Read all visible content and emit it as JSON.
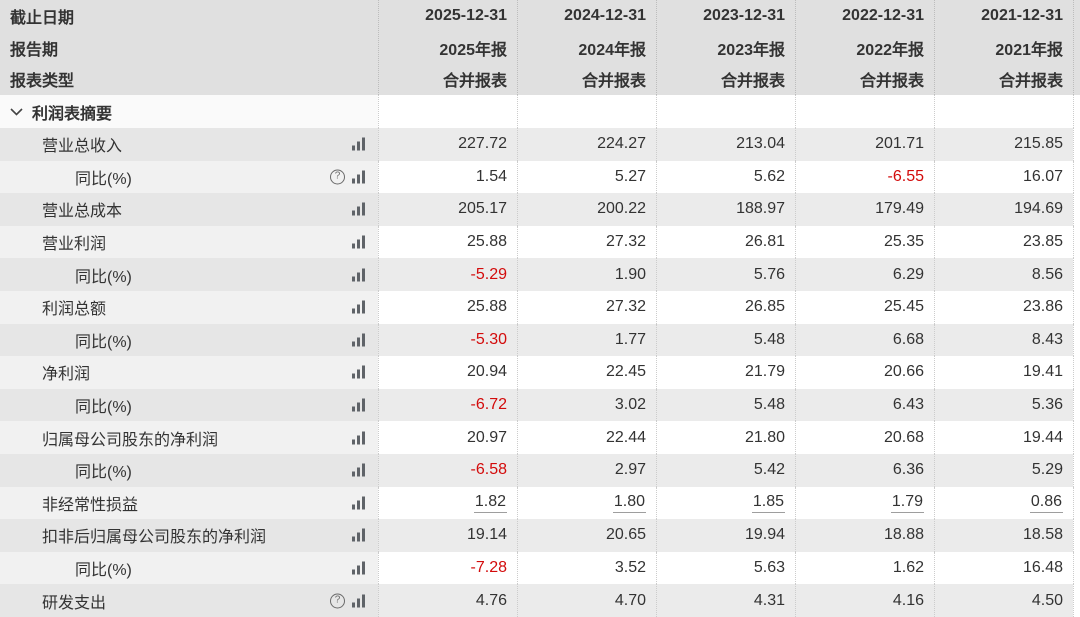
{
  "header": {
    "row_labels": [
      "截止日期",
      "报告期",
      "报表类型"
    ],
    "columns": [
      {
        "date": "2025-12-31",
        "period": "2025年报",
        "report_type": "合并报表"
      },
      {
        "date": "2024-12-31",
        "period": "2024年报",
        "report_type": "合并报表"
      },
      {
        "date": "2023-12-31",
        "period": "2023年报",
        "report_type": "合并报表"
      },
      {
        "date": "2022-12-31",
        "period": "2022年报",
        "report_type": "合并报表"
      },
      {
        "date": "2021-12-31",
        "period": "2021年报",
        "report_type": "合并报表"
      }
    ]
  },
  "section": {
    "title": "利润表摘要"
  },
  "rows": [
    {
      "label": "营业总收入",
      "indent": 1,
      "help": false,
      "chart": true,
      "link": false,
      "values": [
        "227.72",
        "224.27",
        "213.04",
        "201.71",
        "215.85"
      ]
    },
    {
      "label": "同比(%)",
      "indent": 2,
      "help": true,
      "chart": true,
      "link": false,
      "values": [
        "1.54",
        "5.27",
        "5.62",
        "-6.55",
        "16.07"
      ]
    },
    {
      "label": "营业总成本",
      "indent": 1,
      "help": false,
      "chart": true,
      "link": false,
      "values": [
        "205.17",
        "200.22",
        "188.97",
        "179.49",
        "194.69"
      ]
    },
    {
      "label": "营业利润",
      "indent": 1,
      "help": false,
      "chart": true,
      "link": false,
      "values": [
        "25.88",
        "27.32",
        "26.81",
        "25.35",
        "23.85"
      ]
    },
    {
      "label": "同比(%)",
      "indent": 2,
      "help": false,
      "chart": true,
      "link": false,
      "values": [
        "-5.29",
        "1.90",
        "5.76",
        "6.29",
        "8.56"
      ]
    },
    {
      "label": "利润总额",
      "indent": 1,
      "help": false,
      "chart": true,
      "link": false,
      "values": [
        "25.88",
        "27.32",
        "26.85",
        "25.45",
        "23.86"
      ]
    },
    {
      "label": "同比(%)",
      "indent": 2,
      "help": false,
      "chart": true,
      "link": false,
      "values": [
        "-5.30",
        "1.77",
        "5.48",
        "6.68",
        "8.43"
      ]
    },
    {
      "label": "净利润",
      "indent": 1,
      "help": false,
      "chart": true,
      "link": false,
      "values": [
        "20.94",
        "22.45",
        "21.79",
        "20.66",
        "19.41"
      ]
    },
    {
      "label": "同比(%)",
      "indent": 2,
      "help": false,
      "chart": true,
      "link": false,
      "values": [
        "-6.72",
        "3.02",
        "5.48",
        "6.43",
        "5.36"
      ]
    },
    {
      "label": "归属母公司股东的净利润",
      "indent": 1,
      "help": false,
      "chart": true,
      "link": false,
      "values": [
        "20.97",
        "22.44",
        "21.80",
        "20.68",
        "19.44"
      ]
    },
    {
      "label": "同比(%)",
      "indent": 2,
      "help": false,
      "chart": true,
      "link": false,
      "values": [
        "-6.58",
        "2.97",
        "5.42",
        "6.36",
        "5.29"
      ]
    },
    {
      "label": "非经常性损益",
      "indent": 1,
      "help": false,
      "chart": true,
      "link": true,
      "values": [
        "1.82",
        "1.80",
        "1.85",
        "1.79",
        "0.86"
      ]
    },
    {
      "label": "扣非后归属母公司股东的净利润",
      "indent": 1,
      "help": false,
      "chart": true,
      "link": false,
      "values": [
        "19.14",
        "20.65",
        "19.94",
        "18.88",
        "18.58"
      ]
    },
    {
      "label": "同比(%)",
      "indent": 2,
      "help": false,
      "chart": true,
      "link": false,
      "values": [
        "-7.28",
        "3.52",
        "5.63",
        "1.62",
        "16.48"
      ]
    },
    {
      "label": "研发支出",
      "indent": 1,
      "help": true,
      "chart": true,
      "link": false,
      "values": [
        "4.76",
        "4.70",
        "4.31",
        "4.16",
        "4.50"
      ]
    }
  ],
  "colors": {
    "header_bg": "#e0e0e0",
    "row_gray": "#ebebeb",
    "label_gray": "#e6e6e6",
    "label_light": "#f1f1f1",
    "negative_value": "#d30b0b",
    "text": "#333333",
    "divider_dotted": "#cccccc",
    "link_underline": "#9e9e9e"
  },
  "icons": {
    "help": "question-circle-icon",
    "chart": "bar-chart-icon",
    "section_chevron": "chevron-down-icon"
  }
}
